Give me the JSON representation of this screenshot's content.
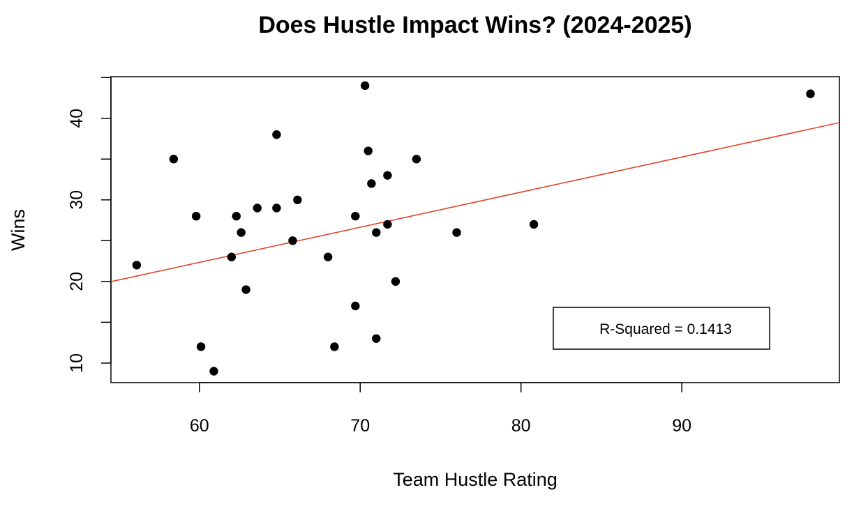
{
  "chart_data": {
    "type": "scatter",
    "title": "Does Hustle Impact Wins? (2024-2025)",
    "xlabel": "Team Hustle Rating",
    "ylabel": "Wins",
    "xlim": [
      54.5,
      99.8
    ],
    "ylim": [
      7.6,
      45.1
    ],
    "x_ticks": [
      60,
      70,
      80,
      90
    ],
    "y_ticks": [
      10,
      15,
      20,
      25,
      30,
      35,
      40,
      45
    ],
    "y_tick_labels": [
      10,
      20,
      30,
      40
    ],
    "grid": false,
    "points": [
      {
        "x": 56.1,
        "y": 22
      },
      {
        "x": 58.4,
        "y": 35
      },
      {
        "x": 59.8,
        "y": 28
      },
      {
        "x": 60.1,
        "y": 12
      },
      {
        "x": 60.9,
        "y": 9
      },
      {
        "x": 62.0,
        "y": 23
      },
      {
        "x": 62.3,
        "y": 28
      },
      {
        "x": 62.6,
        "y": 26
      },
      {
        "x": 62.9,
        "y": 19
      },
      {
        "x": 63.6,
        "y": 29
      },
      {
        "x": 64.8,
        "y": 29
      },
      {
        "x": 64.8,
        "y": 38
      },
      {
        "x": 65.8,
        "y": 25
      },
      {
        "x": 66.1,
        "y": 30
      },
      {
        "x": 68.0,
        "y": 23
      },
      {
        "x": 68.4,
        "y": 12
      },
      {
        "x": 69.7,
        "y": 28
      },
      {
        "x": 69.7,
        "y": 17
      },
      {
        "x": 70.3,
        "y": 44
      },
      {
        "x": 70.5,
        "y": 36
      },
      {
        "x": 70.7,
        "y": 32
      },
      {
        "x": 71.0,
        "y": 26
      },
      {
        "x": 71.0,
        "y": 13
      },
      {
        "x": 71.7,
        "y": 33
      },
      {
        "x": 71.7,
        "y": 27
      },
      {
        "x": 72.2,
        "y": 20
      },
      {
        "x": 73.5,
        "y": 35
      },
      {
        "x": 76.0,
        "y": 26
      },
      {
        "x": 80.8,
        "y": 27
      },
      {
        "x": 98.0,
        "y": 43
      }
    ],
    "regression_line": {
      "color": "#E0452B",
      "intercept": -3.47,
      "slope": 0.4302
    },
    "annotation": {
      "text": "R-Squared = 0.1413",
      "placement": "bottom-right"
    },
    "colors": {
      "points": "#000000",
      "frame": "#000000",
      "background": "#ffffff"
    }
  }
}
